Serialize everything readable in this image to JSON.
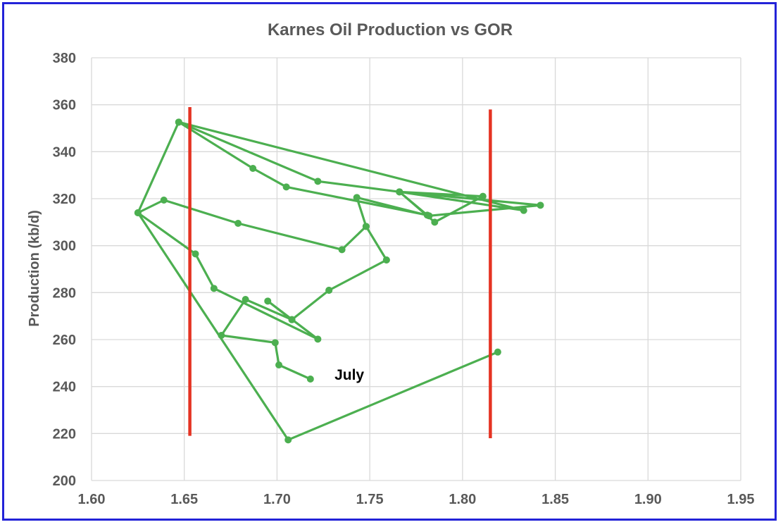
{
  "chart_data": {
    "type": "scatter",
    "title": "Karnes Oil Production vs GOR",
    "xlabel": "",
    "ylabel": "Production (kb/d)",
    "xlim": [
      1.6,
      1.95
    ],
    "ylim": [
      200,
      380
    ],
    "x_ticks": [
      "1.60",
      "1.65",
      "1.70",
      "1.75",
      "1.80",
      "1.85",
      "1.90",
      "1.95"
    ],
    "y_ticks": [
      "200",
      "220",
      "240",
      "260",
      "280",
      "300",
      "320",
      "340",
      "360",
      "380"
    ],
    "grid": true,
    "legend": "none",
    "series": [
      {
        "color": "#4caf50",
        "style": "line-with-markers",
        "x": [
          1.819,
          1.706,
          1.625,
          1.656,
          1.666,
          1.722,
          1.695,
          1.708,
          1.728,
          1.759,
          1.748,
          1.735,
          1.679,
          1.639,
          1.625,
          1.647,
          1.687,
          1.705,
          1.781,
          1.766,
          1.833,
          1.647,
          1.722,
          1.766,
          1.811,
          1.785,
          1.766,
          1.842,
          1.782,
          1.743,
          1.748,
          1.759,
          1.728,
          1.708,
          1.683,
          1.67,
          1.699,
          1.701,
          1.718
        ],
        "y": [
          254.7,
          217.3,
          314.0,
          296.5,
          281.8,
          260.2,
          276.4,
          268.5,
          281.0,
          293.9,
          308.2,
          298.3,
          309.5,
          319.4,
          314.0,
          352.6,
          332.9,
          325.0,
          313.0,
          322.9,
          315.0,
          352.6,
          327.4,
          322.9,
          321.0,
          310.0,
          322.9,
          317.2,
          312.7,
          320.5,
          308.2,
          293.9,
          281.0,
          268.5,
          277.1,
          261.8,
          258.7,
          249.2,
          243.2
        ]
      }
    ],
    "reference_lines": [
      {
        "color": "#e53323",
        "x": 1.653,
        "y_from": 219,
        "y_to": 359
      },
      {
        "color": "#e53323",
        "x": 1.815,
        "y_from": 218,
        "y_to": 358
      }
    ],
    "annotations": [
      {
        "text": "July",
        "x": 1.731,
        "y": 245
      }
    ]
  }
}
